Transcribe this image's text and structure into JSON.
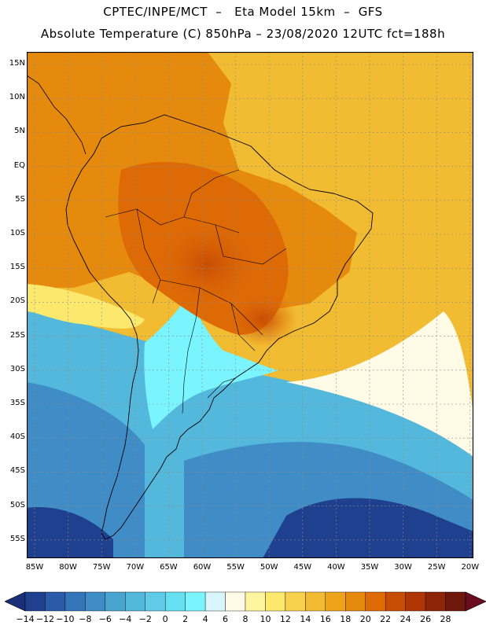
{
  "header": {
    "line1": "CPTEC/INPE/MCT  –   Eta Model 15km  –  GFS",
    "line2": "Absolute Temperature (C) 850hPa – 23/08/2020 12UTC fct=188h"
  },
  "latitude_labels": [
    "15N",
    "10N",
    "5N",
    "EQ",
    "5S",
    "10S",
    "15S",
    "20S",
    "25S",
    "30S",
    "35S",
    "40S",
    "45S",
    "50S",
    "55S"
  ],
  "longitude_labels": [
    "85W",
    "80W",
    "75W",
    "70W",
    "65W",
    "60W",
    "55W",
    "50W",
    "45W",
    "40W",
    "35W",
    "30W",
    "25W",
    "20W"
  ],
  "colorbar": {
    "labels": [
      "−14",
      "−12",
      "−10",
      "−8",
      "−6",
      "−4",
      "−2",
      "0",
      "2",
      "4",
      "6",
      "8",
      "10",
      "12",
      "14",
      "16",
      "18",
      "20",
      "22",
      "24",
      "26",
      "28"
    ],
    "colors": [
      "#1f3f8f",
      "#2a5aa8",
      "#3474b8",
      "#3f8cc6",
      "#4aa4d0",
      "#54b8dc",
      "#5fcbe6",
      "#66e0f0",
      "#7af5ff",
      "#d8f5fb",
      "#fffbe6",
      "#fff59e",
      "#fde86e",
      "#f8d24c",
      "#f2bc32",
      "#eda41a",
      "#e68a0e",
      "#de6a06",
      "#c84d04",
      "#b03505",
      "#8f2508",
      "#6e180c"
    ],
    "low_color": "#1a2f7a",
    "high_color": "#6a0d1e"
  },
  "map_colors": {
    "deep_blue": "#1f3f8f",
    "mid_blue": "#3f8cc6",
    "light_blue": "#54b8dc",
    "cyan": "#7af5ff",
    "cream": "#fffbe6",
    "yellow": "#fde86e",
    "gold": "#f2bc32",
    "orange": "#e68a0e",
    "dark_orange": "#de6a06",
    "red_orange": "#c84d04"
  }
}
